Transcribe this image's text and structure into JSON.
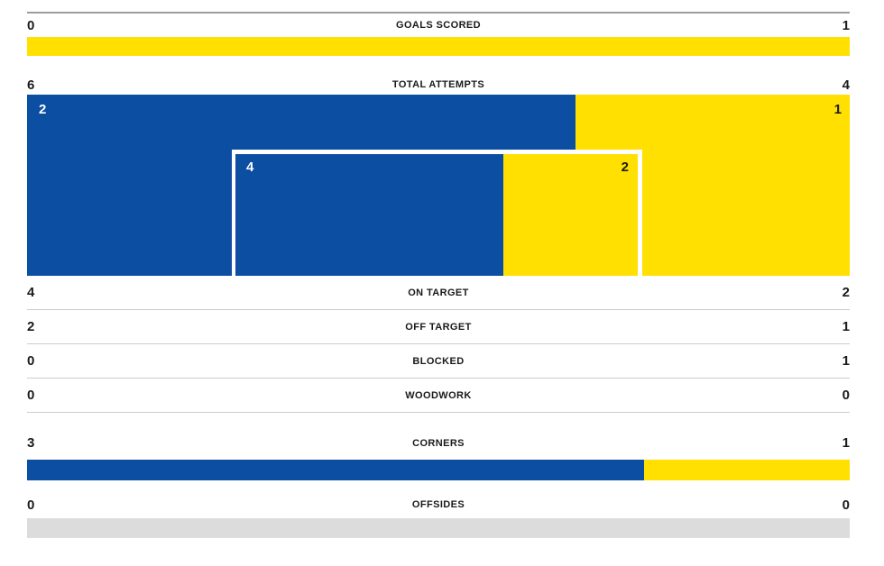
{
  "colors": {
    "home": "#0b4ea2",
    "away": "#ffe000",
    "neutral_bar": "#dcdcdc",
    "separator": "#cccccc",
    "top_line": "#9d9d9d",
    "text": "#1a1a1a"
  },
  "chart_data": {
    "type": "bar",
    "title": "Football match statistics, home team (blue) vs away team (yellow)",
    "legend_position": "none",
    "series": [
      {
        "name": "home",
        "color": "#0b4ea2"
      },
      {
        "name": "away",
        "color": "#ffe000"
      }
    ],
    "stats": {
      "goals": {
        "label": "GOALS SCORED",
        "home": 0,
        "away": 1
      },
      "total_attempts": {
        "label": "TOTAL ATTEMPTS",
        "home": 6,
        "away": 4
      },
      "attempts_box_outer": {
        "home": 2,
        "away": 1
      },
      "attempts_box_inner": {
        "home": 4,
        "away": 2
      },
      "on_target": {
        "label": "ON TARGET",
        "home": 4,
        "away": 2
      },
      "off_target": {
        "label": "OFF TARGET",
        "home": 2,
        "away": 1
      },
      "blocked": {
        "label": "BLOCKED",
        "home": 0,
        "away": 1
      },
      "woodwork": {
        "label": "WOODWORK",
        "home": 0,
        "away": 0
      },
      "corners": {
        "label": "CORNERS",
        "home": 3,
        "away": 1
      },
      "offsides": {
        "label": "OFFSIDES",
        "home": 0,
        "away": 0
      }
    }
  }
}
